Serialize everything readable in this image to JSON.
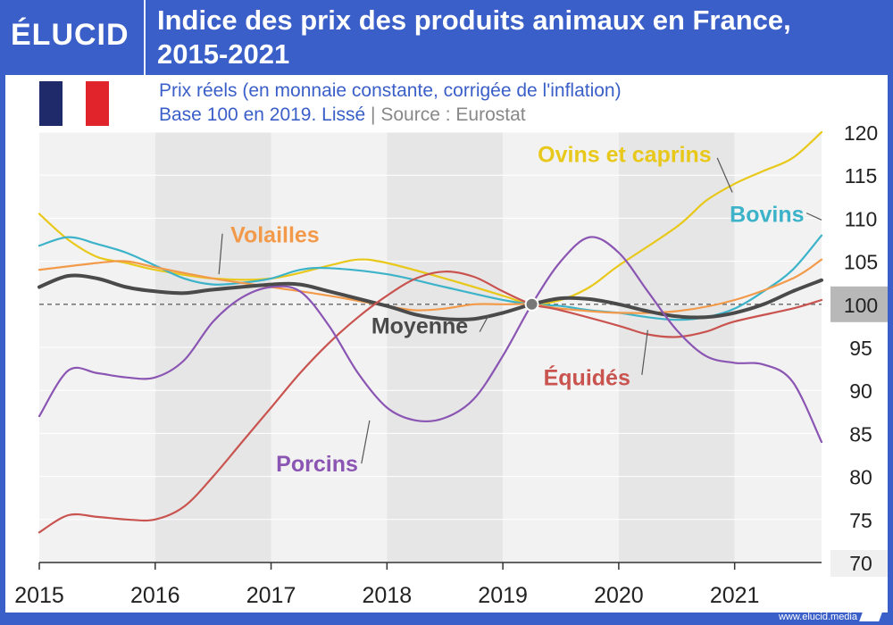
{
  "header": {
    "brand": "ÉLUCID",
    "title_line1": "Indice des prix des produits animaux en France,",
    "title_line2": "2015-2021"
  },
  "subtitle": {
    "line1": "Prix réels (en monnaie constante, corrigée de l'inflation)",
    "line2_main": "Base 100 en 2019. Lissé",
    "line2_sep": "|",
    "line2_source": "Source : Eurostat"
  },
  "flag": {
    "colors": [
      "#1f2a6b",
      "#ffffff",
      "#e1242b"
    ]
  },
  "footer": {
    "url": "www.elucid.media"
  },
  "chart_data": {
    "type": "line",
    "x_ticks": [
      "2015",
      "2016",
      "2017",
      "2018",
      "2019",
      "2020",
      "2021"
    ],
    "xlim": [
      2015,
      2021.75
    ],
    "ylim": [
      70,
      120
    ],
    "y_ticks": [
      70,
      75,
      80,
      85,
      90,
      95,
      100,
      105,
      110,
      115,
      120
    ],
    "y_highlight": 100,
    "reference_line": 100,
    "base_point": {
      "x": 2019.25,
      "y": 100
    },
    "grid": "vertical alternating year bands",
    "series": [
      {
        "name": "Ovins et caprins",
        "color": "#e8c81a",
        "width": 2.2,
        "label_at": [
          2020.8,
          116.5
        ],
        "label_anchor": "end",
        "leader": [
          [
            2020.85,
            117
          ],
          [
            2020.98,
            113
          ]
        ],
        "points": [
          [
            2015,
            110.5
          ],
          [
            2015.25,
            107.5
          ],
          [
            2015.5,
            105.5
          ],
          [
            2015.75,
            104.8
          ],
          [
            2016,
            104
          ],
          [
            2016.5,
            103
          ],
          [
            2017,
            103
          ],
          [
            2017.5,
            104.5
          ],
          [
            2017.75,
            105.2
          ],
          [
            2018,
            104.8
          ],
          [
            2018.5,
            103
          ],
          [
            2019,
            101
          ],
          [
            2019.25,
            100
          ],
          [
            2019.5,
            100.5
          ],
          [
            2019.75,
            102
          ],
          [
            2020,
            104.5
          ],
          [
            2020.5,
            109
          ],
          [
            2020.75,
            112
          ],
          [
            2021,
            114
          ],
          [
            2021.25,
            115.5
          ],
          [
            2021.5,
            117
          ],
          [
            2021.75,
            120
          ]
        ]
      },
      {
        "name": "Bovins",
        "color": "#3cb3c9",
        "width": 2.2,
        "label_at": [
          2021.6,
          109.6
        ],
        "label_anchor": "end",
        "leader": [
          [
            2021.62,
            110.6
          ],
          [
            2021.75,
            109.8
          ]
        ],
        "points": [
          [
            2015,
            106.8
          ],
          [
            2015.25,
            107.8
          ],
          [
            2015.5,
            107
          ],
          [
            2015.75,
            106
          ],
          [
            2016,
            104.5
          ],
          [
            2016.25,
            103
          ],
          [
            2016.5,
            102.3
          ],
          [
            2016.75,
            102.5
          ],
          [
            2017,
            103
          ],
          [
            2017.25,
            104
          ],
          [
            2017.5,
            104.2
          ],
          [
            2018,
            103.5
          ],
          [
            2018.5,
            102
          ],
          [
            2019,
            100.5
          ],
          [
            2019.25,
            100
          ],
          [
            2019.5,
            99.8
          ],
          [
            2019.75,
            99.3
          ],
          [
            2020,
            99
          ],
          [
            2020.25,
            98.5
          ],
          [
            2020.5,
            98.2
          ],
          [
            2020.75,
            98.5
          ],
          [
            2021,
            99.5
          ],
          [
            2021.25,
            101.5
          ],
          [
            2021.5,
            104
          ],
          [
            2021.75,
            108
          ]
        ]
      },
      {
        "name": "Volailles",
        "color": "#f29a4a",
        "width": 2.2,
        "label_at": [
          2016.65,
          107.2
        ],
        "label_anchor": "start",
        "leader": [
          [
            2016.58,
            108.2
          ],
          [
            2016.55,
            103.5
          ]
        ],
        "points": [
          [
            2015,
            104
          ],
          [
            2015.5,
            104.8
          ],
          [
            2015.75,
            105
          ],
          [
            2016,
            104.3
          ],
          [
            2016.5,
            103
          ],
          [
            2017,
            102
          ],
          [
            2017.5,
            101
          ],
          [
            2018,
            99.8
          ],
          [
            2018.25,
            99.3
          ],
          [
            2018.5,
            99.5
          ],
          [
            2018.75,
            100
          ],
          [
            2019,
            100
          ],
          [
            2019.25,
            100
          ],
          [
            2019.5,
            99.5
          ],
          [
            2020,
            99
          ],
          [
            2020.5,
            99.2
          ],
          [
            2021,
            100.5
          ],
          [
            2021.5,
            103
          ],
          [
            2021.75,
            105.2
          ]
        ]
      },
      {
        "name": "Moyenne",
        "color": "#4a4a4a",
        "width": 4,
        "label_at": [
          2018.7,
          96.6
        ],
        "label_anchor": "end",
        "leader": [
          [
            2018.8,
            96.8
          ],
          [
            2018.88,
            98.8
          ]
        ],
        "points": [
          [
            2015,
            102
          ],
          [
            2015.25,
            103.3
          ],
          [
            2015.5,
            103
          ],
          [
            2015.75,
            102
          ],
          [
            2016,
            101.5
          ],
          [
            2016.25,
            101.3
          ],
          [
            2016.5,
            101.7
          ],
          [
            2017,
            102.3
          ],
          [
            2017.25,
            102.3
          ],
          [
            2017.5,
            101.5
          ],
          [
            2018,
            99.8
          ],
          [
            2018.25,
            98.8
          ],
          [
            2018.5,
            98.3
          ],
          [
            2018.75,
            98.3
          ],
          [
            2019,
            99
          ],
          [
            2019.25,
            100
          ],
          [
            2019.5,
            100.7
          ],
          [
            2019.75,
            100.6
          ],
          [
            2020,
            100
          ],
          [
            2020.25,
            99.2
          ],
          [
            2020.5,
            98.6
          ],
          [
            2020.75,
            98.5
          ],
          [
            2021,
            99
          ],
          [
            2021.25,
            100
          ],
          [
            2021.5,
            101.5
          ],
          [
            2021.75,
            102.8
          ]
        ]
      },
      {
        "name": "Équidés",
        "color": "#c9534f",
        "width": 2.2,
        "label_at": [
          2020.1,
          90.6
        ],
        "label_anchor": "end",
        "leader": [
          [
            2020.2,
            91.8
          ],
          [
            2020.25,
            97
          ]
        ],
        "points": [
          [
            2015,
            73.5
          ],
          [
            2015.25,
            75.5
          ],
          [
            2015.5,
            75.3
          ],
          [
            2015.75,
            75
          ],
          [
            2016,
            75
          ],
          [
            2016.25,
            76.5
          ],
          [
            2016.5,
            80
          ],
          [
            2016.75,
            84
          ],
          [
            2017,
            88
          ],
          [
            2017.25,
            92
          ],
          [
            2017.5,
            95.5
          ],
          [
            2017.75,
            98.5
          ],
          [
            2018,
            101
          ],
          [
            2018.25,
            103
          ],
          [
            2018.5,
            103.8
          ],
          [
            2018.75,
            103.2
          ],
          [
            2019,
            101.5
          ],
          [
            2019.25,
            100
          ],
          [
            2019.5,
            99.3
          ],
          [
            2020,
            97.5
          ],
          [
            2020.25,
            96.5
          ],
          [
            2020.5,
            96.2
          ],
          [
            2020.75,
            96.8
          ],
          [
            2021,
            98
          ],
          [
            2021.5,
            99.5
          ],
          [
            2021.75,
            100.5
          ]
        ]
      },
      {
        "name": "Porcins",
        "color": "#8a55b3",
        "width": 2.2,
        "label_at": [
          2017.75,
          80.6
        ],
        "label_anchor": "end",
        "leader": [
          [
            2017.78,
            81.5
          ],
          [
            2017.85,
            86.5
          ]
        ],
        "points": [
          [
            2015,
            87
          ],
          [
            2015.25,
            92.3
          ],
          [
            2015.5,
            92
          ],
          [
            2015.75,
            91.5
          ],
          [
            2016,
            91.5
          ],
          [
            2016.25,
            93.5
          ],
          [
            2016.5,
            98
          ],
          [
            2016.75,
            100.8
          ],
          [
            2017,
            102
          ],
          [
            2017.25,
            101.5
          ],
          [
            2017.5,
            97.5
          ],
          [
            2017.75,
            92
          ],
          [
            2018,
            88
          ],
          [
            2018.25,
            86.5
          ],
          [
            2018.5,
            86.8
          ],
          [
            2018.75,
            89
          ],
          [
            2019,
            94
          ],
          [
            2019.25,
            100
          ],
          [
            2019.5,
            105
          ],
          [
            2019.75,
            107.8
          ],
          [
            2020,
            106
          ],
          [
            2020.25,
            101.5
          ],
          [
            2020.5,
            97
          ],
          [
            2020.75,
            94
          ],
          [
            2021,
            93.2
          ],
          [
            2021.25,
            93
          ],
          [
            2021.5,
            91
          ],
          [
            2021.75,
            84
          ]
        ]
      }
    ]
  }
}
